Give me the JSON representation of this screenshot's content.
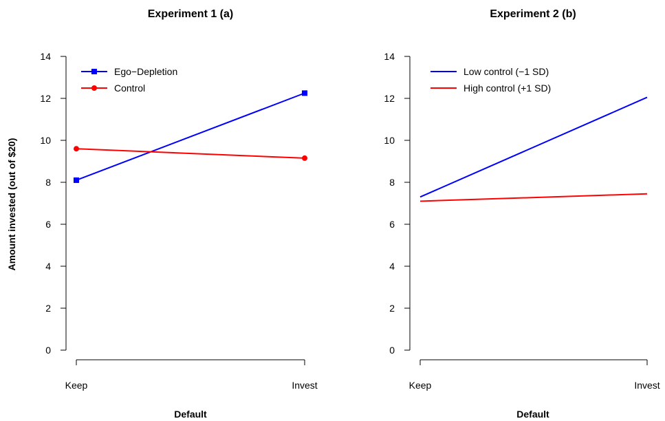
{
  "shared_ylabel": "Amount invested (out of $20)",
  "chart_data": [
    {
      "type": "line",
      "title": "Experiment 1 (a)",
      "xlabel": "Default",
      "ylabel": "Amount invested (out of $20)",
      "categories": [
        "Keep",
        "Invest"
      ],
      "ylim": [
        0,
        14
      ],
      "yticks": [
        0,
        2,
        4,
        6,
        8,
        10,
        12,
        14
      ],
      "grid": false,
      "legend_position": "top-left",
      "series": [
        {
          "name": "Ego−Depletion",
          "values": [
            8.1,
            12.25
          ],
          "color": "#0000ff",
          "marker": "square"
        },
        {
          "name": "Control",
          "values": [
            9.6,
            9.15
          ],
          "color": "#ff0000",
          "marker": "circle"
        }
      ]
    },
    {
      "type": "line",
      "title": "Experiment 2 (b)",
      "xlabel": "Default",
      "ylabel": "",
      "categories": [
        "Keep",
        "Invest"
      ],
      "ylim": [
        0,
        14
      ],
      "yticks": [
        0,
        2,
        4,
        6,
        8,
        10,
        12,
        14
      ],
      "grid": false,
      "legend_position": "top-left",
      "series": [
        {
          "name": "Low control (−1 SD)",
          "values": [
            7.3,
            12.05
          ],
          "color": "#0000ff",
          "marker": "none"
        },
        {
          "name": "High control (+1 SD)",
          "values": [
            7.1,
            7.45
          ],
          "color": "#ff0000",
          "marker": "none"
        }
      ]
    }
  ]
}
